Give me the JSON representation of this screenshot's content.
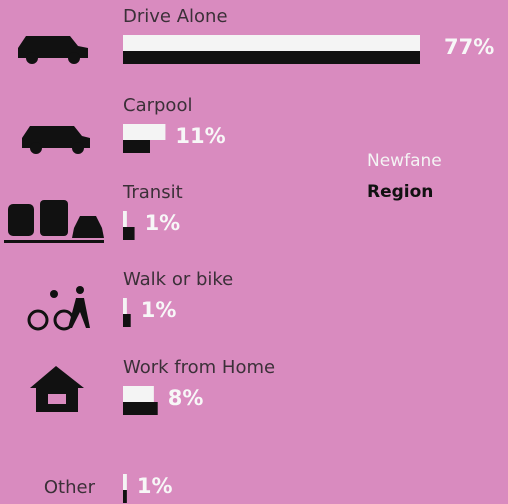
{
  "chart_data": {
    "type": "bar",
    "categories": [
      "Drive Alone",
      "Carpool",
      "Transit",
      "Walk or bike",
      "Work from Home",
      "Other"
    ],
    "series": [
      {
        "name": "Newfane",
        "color": "#f4f4f4",
        "values": [
          77,
          11,
          1,
          1,
          8,
          1
        ],
        "value_labels": [
          "77%",
          "11%",
          "1%",
          "1%",
          "8%",
          "1%"
        ]
      },
      {
        "name": "Region",
        "color": "#111111",
        "values": [
          77,
          7,
          3,
          2,
          9,
          1
        ]
      }
    ]
  }
}
